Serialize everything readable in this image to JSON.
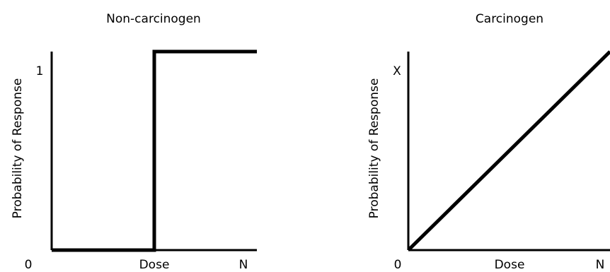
{
  "chart_data": [
    {
      "type": "line",
      "title": "Non-carcinogen",
      "xlabel": "Dose",
      "ylabel": "Probability of Response",
      "x_tick_labels": [
        "0",
        "N"
      ],
      "y_tick_labels": [
        "1"
      ],
      "xlim": [
        0,
        1
      ],
      "ylim": [
        0,
        1
      ],
      "series": [
        {
          "x": [
            0,
            0.5,
            0.5,
            1
          ],
          "y": [
            0,
            0,
            1,
            1
          ]
        }
      ]
    },
    {
      "type": "line",
      "title": "Carcinogen",
      "xlabel": "Dose",
      "ylabel": "Probability of Response",
      "x_tick_labels": [
        "0",
        "N"
      ],
      "y_tick_labels": [
        "X"
      ],
      "xlim": [
        0,
        1
      ],
      "ylim": [
        0,
        1
      ],
      "series": [
        {
          "x": [
            0,
            1
          ],
          "y": [
            0,
            1
          ]
        }
      ]
    }
  ],
  "colors": {
    "line": "#000000",
    "axis": "#000000",
    "background": "#ffffff"
  }
}
